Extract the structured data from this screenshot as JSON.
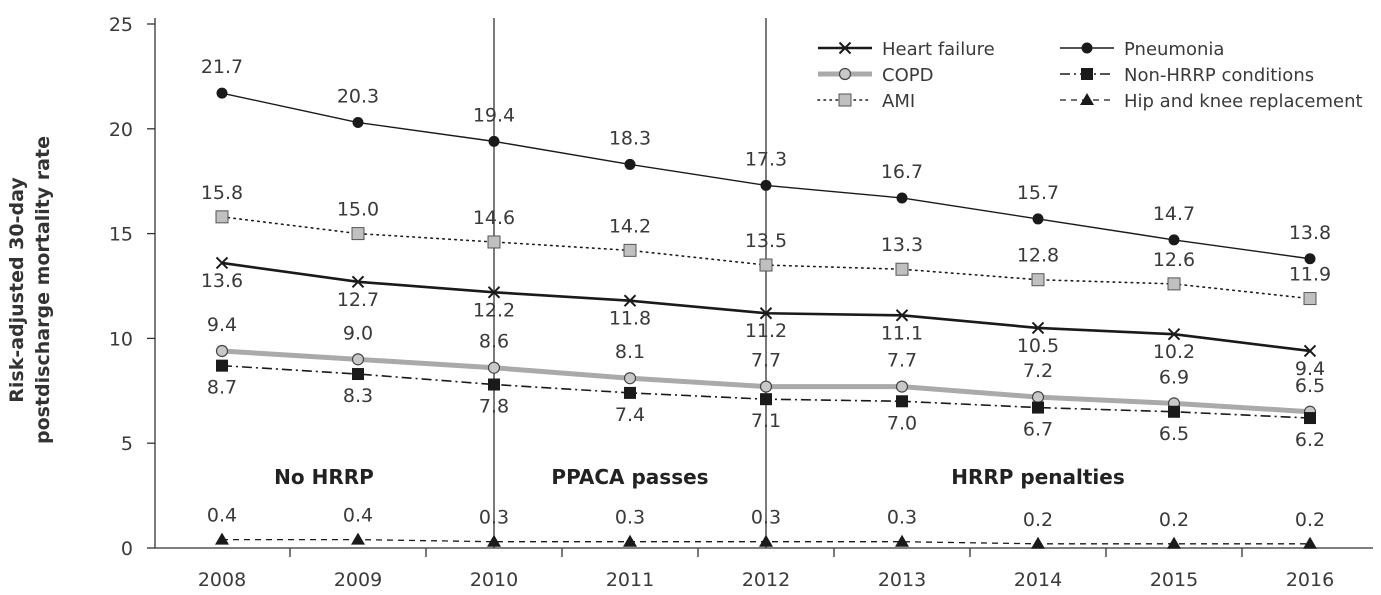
{
  "chart_data": {
    "type": "line",
    "ylabel_lines": [
      "Risk-adjusted 30-day",
      "postdischarge mortality rate"
    ],
    "x": [
      "2008",
      "2009",
      "2010",
      "2011",
      "2012",
      "2013",
      "2014",
      "2015",
      "2016"
    ],
    "ylim": [
      0,
      25
    ],
    "yticks": [
      "0",
      "5",
      "10",
      "15",
      "20",
      "25"
    ],
    "grid": false,
    "legend_position": "top-right",
    "period_dividers": [
      "2010",
      "2012"
    ],
    "periods": [
      {
        "label": "No HRRP",
        "center": "2008.75"
      },
      {
        "label": "PPACA passes",
        "center": "2011"
      },
      {
        "label": "HRRP penalties",
        "center": "2014"
      }
    ],
    "series": [
      {
        "key": "hf",
        "name": "Heart failure",
        "values": [
          13.6,
          12.7,
          12.2,
          11.8,
          11.2,
          11.1,
          10.5,
          10.2,
          9.4
        ],
        "labels": [
          "13.6",
          "12.7",
          "12.2",
          "11.8",
          "11.2",
          "11.1",
          "10.5",
          "10.2",
          "9.4"
        ],
        "color": "#1a1a1a",
        "line": "solid",
        "marker": "x"
      },
      {
        "key": "pn",
        "name": "Pneumonia",
        "values": [
          21.7,
          20.3,
          19.4,
          18.3,
          17.3,
          16.7,
          15.7,
          14.7,
          13.8
        ],
        "labels": [
          "21.7",
          "20.3",
          "19.4",
          "18.3",
          "17.3",
          "16.7",
          "15.7",
          "14.7",
          "13.8"
        ],
        "color": "#1a1a1a",
        "line": "solid-thin",
        "marker": "circle"
      },
      {
        "key": "copd",
        "name": "COPD",
        "values": [
          9.4,
          9.0,
          8.6,
          8.1,
          7.7,
          7.7,
          7.2,
          6.9,
          6.5
        ],
        "labels": [
          "9.4",
          "9.0",
          "8.6",
          "8.1",
          "7.7",
          "7.7",
          "7.2",
          "6.9",
          "6.5"
        ],
        "color": "#aaaaaa",
        "line": "thick-gray",
        "marker": "circle-gray"
      },
      {
        "key": "non",
        "name": "Non-HRRP conditions",
        "values": [
          8.7,
          8.3,
          7.8,
          7.4,
          7.1,
          7.0,
          6.7,
          6.5,
          6.2
        ],
        "labels": [
          "8.7",
          "8.3",
          "7.8",
          "7.4",
          "7.1",
          "7.0",
          "6.7",
          "6.5",
          "6.2"
        ],
        "color": "#1a1a1a",
        "line": "dash-dot",
        "marker": "square"
      },
      {
        "key": "ami",
        "name": "AMI",
        "values": [
          15.8,
          15.0,
          14.6,
          14.2,
          13.5,
          13.3,
          12.8,
          12.6,
          11.9
        ],
        "labels": [
          "15.8",
          "15.0",
          "14.6",
          "14.2",
          "13.5",
          "13.3",
          "12.8",
          "12.6",
          "11.9"
        ],
        "color": "#1a1a1a",
        "line": "dotted",
        "marker": "square-gray"
      },
      {
        "key": "hip",
        "name": "Hip and knee replacement",
        "values": [
          0.4,
          0.4,
          0.3,
          0.3,
          0.3,
          0.3,
          0.2,
          0.2,
          0.2
        ],
        "labels": [
          "0.4",
          "0.4",
          "0.3",
          "0.3",
          "0.3",
          "0.3",
          "0.2",
          "0.2",
          "0.2"
        ],
        "color": "#1a1a1a",
        "line": "dashed",
        "marker": "triangle"
      }
    ],
    "legend_order": [
      "hf",
      "pn",
      "copd",
      "non",
      "ami",
      "hip"
    ]
  }
}
